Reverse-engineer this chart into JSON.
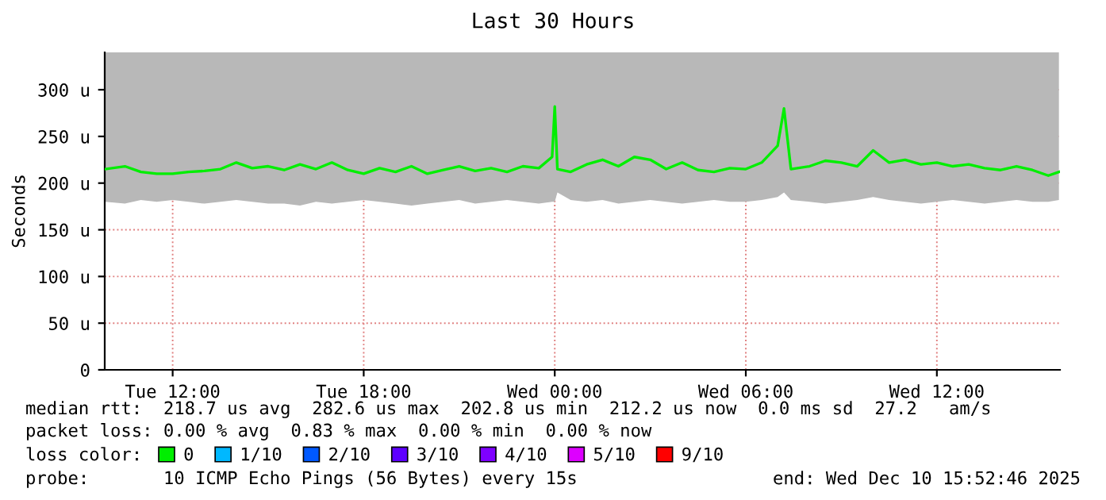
{
  "chart_data": {
    "type": "line",
    "title": "Last 30 Hours",
    "ylabel": "Seconds",
    "xlim": [
      "2025-12-09T09:52",
      "2025-12-10T15:52"
    ],
    "xticks": [
      {
        "value": "2025-12-09T12:00",
        "label": "Tue 12:00"
      },
      {
        "value": "2025-12-09T18:00",
        "label": "Tue 18:00"
      },
      {
        "value": "2025-12-10T00:00",
        "label": "Wed 00:00"
      },
      {
        "value": "2025-12-10T06:00",
        "label": "Wed 06:00"
      },
      {
        "value": "2025-12-10T12:00",
        "label": "Wed 12:00"
      }
    ],
    "ylim": [
      0,
      340
    ],
    "yticks": [
      0,
      {
        "value": 50,
        "label": "50 u"
      },
      {
        "value": 100,
        "label": "100 u"
      },
      {
        "value": 150,
        "label": "150 u"
      },
      {
        "value": 200,
        "label": "200 u"
      },
      {
        "value": 250,
        "label": "250 u"
      },
      {
        "value": 300,
        "label": "300 u"
      }
    ],
    "grid": true,
    "legend": "bottom",
    "legend_title": "loss color:",
    "series": [
      {
        "name": "0",
        "color": "#00ee00",
        "x": [
          "2025-12-09T09:53",
          "2025-12-09T10:30",
          "2025-12-09T11:00",
          "2025-12-09T11:30",
          "2025-12-09T12:00",
          "2025-12-09T12:30",
          "2025-12-09T13:00",
          "2025-12-09T13:30",
          "2025-12-09T14:00",
          "2025-12-09T14:30",
          "2025-12-09T15:00",
          "2025-12-09T15:30",
          "2025-12-09T16:00",
          "2025-12-09T16:30",
          "2025-12-09T17:00",
          "2025-12-09T17:30",
          "2025-12-09T18:00",
          "2025-12-09T18:30",
          "2025-12-09T19:00",
          "2025-12-09T19:30",
          "2025-12-09T20:00",
          "2025-12-09T20:30",
          "2025-12-09T21:00",
          "2025-12-09T21:30",
          "2025-12-09T22:00",
          "2025-12-09T22:30",
          "2025-12-09T23:00",
          "2025-12-09T23:30",
          "2025-12-09T23:55",
          "2025-12-10T00:00",
          "2025-12-10T00:05",
          "2025-12-10T00:30",
          "2025-12-10T01:00",
          "2025-12-10T01:30",
          "2025-12-10T02:00",
          "2025-12-10T02:30",
          "2025-12-10T03:00",
          "2025-12-10T03:30",
          "2025-12-10T04:00",
          "2025-12-10T04:30",
          "2025-12-10T05:00",
          "2025-12-10T05:30",
          "2025-12-10T06:00",
          "2025-12-10T06:30",
          "2025-12-10T07:00",
          "2025-12-10T07:12",
          "2025-12-10T07:25",
          "2025-12-10T08:00",
          "2025-12-10T08:30",
          "2025-12-10T09:00",
          "2025-12-10T09:30",
          "2025-12-10T10:00",
          "2025-12-10T10:30",
          "2025-12-10T11:00",
          "2025-12-10T11:30",
          "2025-12-10T12:00",
          "2025-12-10T12:30",
          "2025-12-10T13:00",
          "2025-12-10T13:30",
          "2025-12-10T14:00",
          "2025-12-10T14:30",
          "2025-12-10T15:00",
          "2025-12-10T15:30",
          "2025-12-10T15:50"
        ],
        "values": [
          215,
          218,
          212,
          210,
          210,
          212,
          213,
          215,
          222,
          216,
          218,
          214,
          220,
          215,
          222,
          214,
          210,
          216,
          212,
          218,
          210,
          214,
          218,
          213,
          216,
          212,
          218,
          216,
          228,
          282,
          215,
          212,
          220,
          225,
          218,
          228,
          225,
          215,
          222,
          214,
          212,
          216,
          215,
          222,
          240,
          280,
          215,
          218,
          224,
          222,
          218,
          235,
          222,
          225,
          220,
          222,
          218,
          220,
          216,
          214,
          218,
          214,
          208,
          212
        ],
        "lower": [
          180,
          178,
          182,
          180,
          182,
          180,
          178,
          180,
          182,
          180,
          178,
          178,
          176,
          180,
          178,
          180,
          182,
          180,
          178,
          176,
          178,
          180,
          182,
          178,
          180,
          182,
          180,
          178,
          180,
          180,
          190,
          182,
          180,
          182,
          178,
          180,
          182,
          180,
          178,
          180,
          182,
          180,
          180,
          182,
          185,
          190,
          182,
          180,
          178,
          180,
          182,
          185,
          182,
          180,
          178,
          180,
          182,
          180,
          178,
          180,
          182,
          180,
          180,
          182
        ],
        "upper": [
          340,
          340,
          340,
          340,
          340,
          340,
          340,
          340,
          340,
          340,
          340,
          340,
          340,
          340,
          340,
          340,
          340,
          340,
          340,
          340,
          340,
          340,
          340,
          340,
          340,
          340,
          340,
          340,
          340,
          340,
          340,
          340,
          340,
          340,
          340,
          340,
          340,
          340,
          340,
          340,
          340,
          340,
          340,
          340,
          340,
          340,
          340,
          340,
          340,
          340,
          340,
          340,
          340,
          340,
          340,
          340,
          340,
          340,
          340,
          340,
          340,
          340,
          340,
          340
        ]
      },
      {
        "name": "1/10",
        "color": "#00b8ff"
      },
      {
        "name": "2/10",
        "color": "#0059ff"
      },
      {
        "name": "3/10",
        "color": "#5e00ff"
      },
      {
        "name": "4/10",
        "color": "#7e00ff"
      },
      {
        "name": "5/10",
        "color": "#dd00ff"
      },
      {
        "name": "9/10",
        "color": "#ff0000"
      }
    ],
    "annotations": [
      "median rtt:  218.7 us avg  282.6 us max  202.8 us min  212.2 us now  0.0 ms sd  27.2   am/s",
      "packet loss: 0.00 % avg  0.83 % max  0.00 % min  0.00 % now",
      "probe:       10 ICMP Echo Pings (56 Bytes) every 15s",
      "end: Wed Dec 10 15:52:46 2025"
    ]
  }
}
